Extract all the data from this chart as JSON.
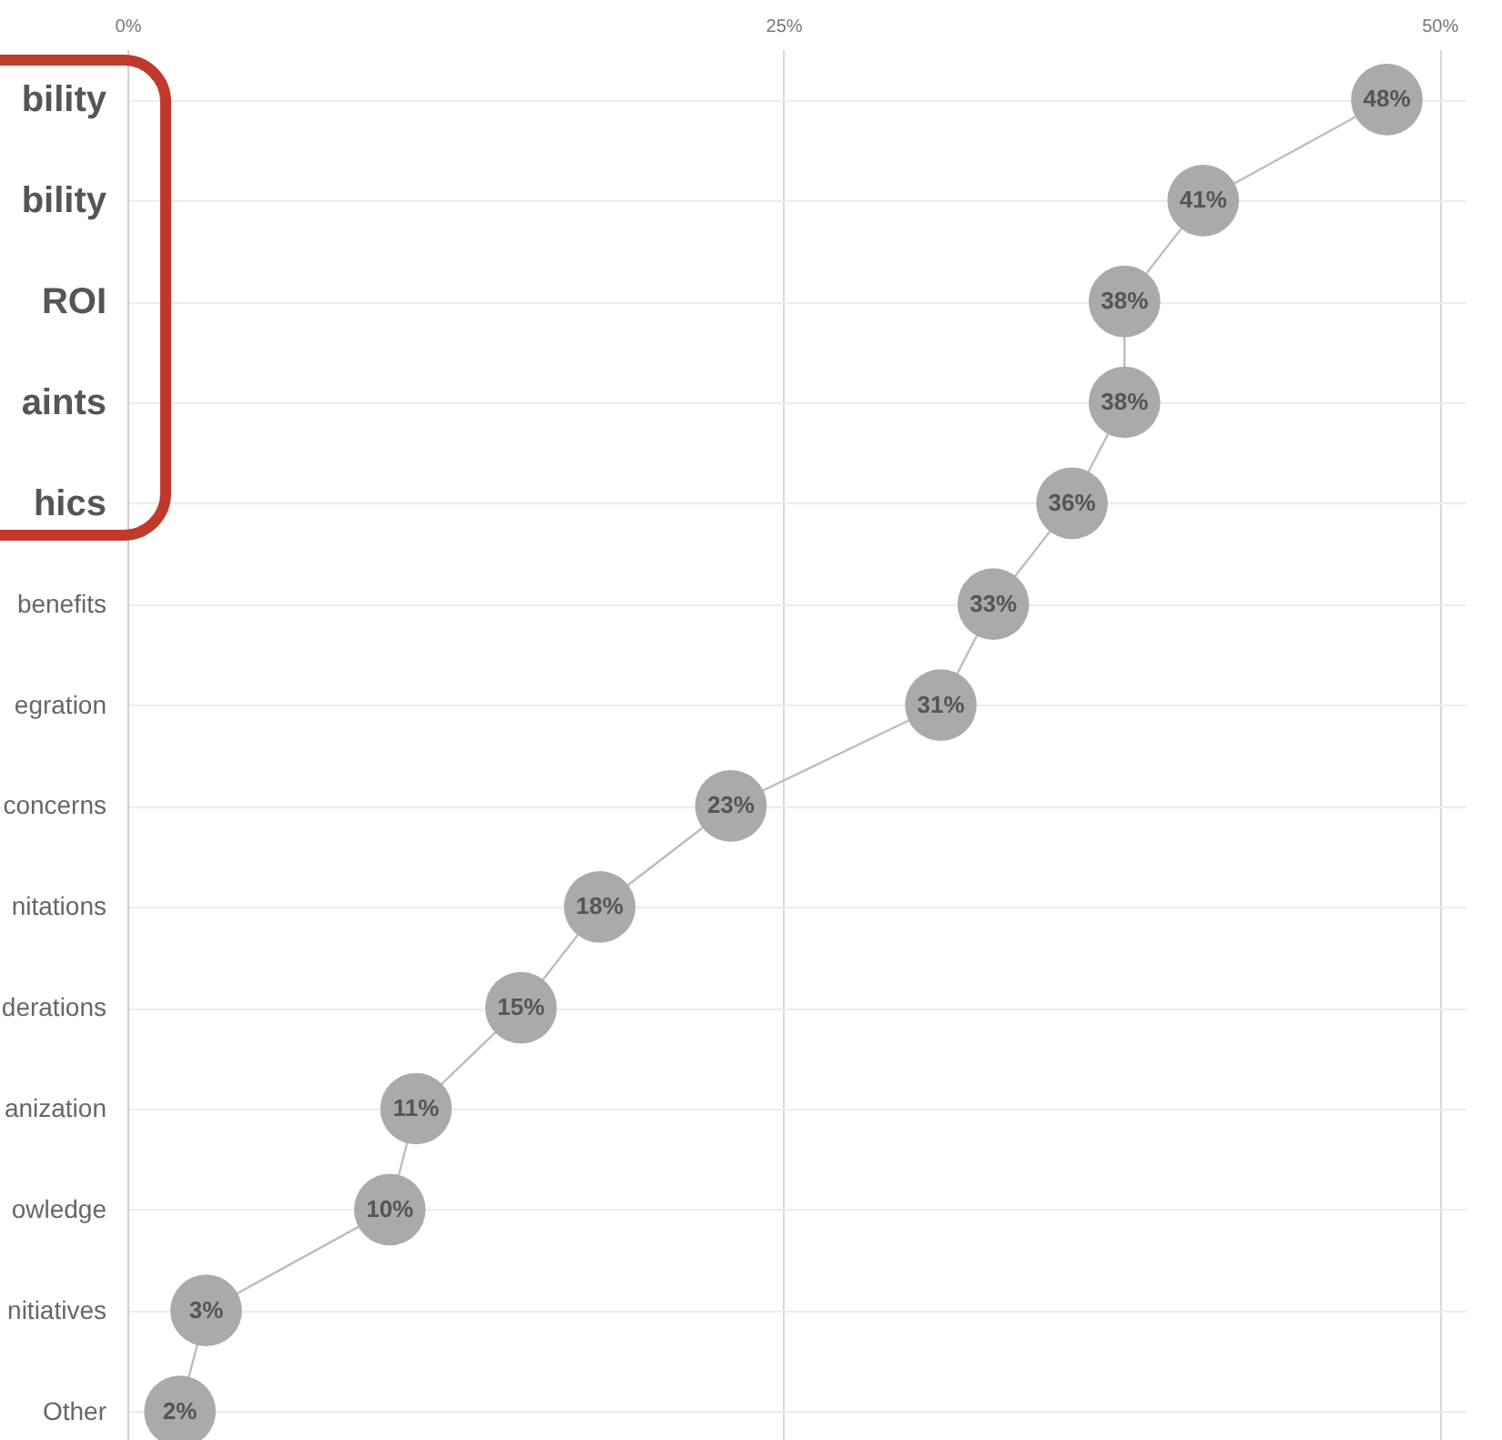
{
  "chart_data": {
    "type": "line",
    "orientation": "horizontal",
    "categories": [
      "bility",
      "bility",
      "ROI",
      "aints",
      "hics",
      "benefits",
      "egration",
      "concerns",
      "nitations",
      "derations",
      "anization",
      "owledge",
      "nitiatives",
      "Other"
    ],
    "values": [
      48,
      41,
      38,
      38,
      36,
      33,
      31,
      23,
      18,
      15,
      11,
      10,
      3,
      2
    ],
    "value_labels": [
      "48%",
      "41%",
      "38%",
      "38%",
      "36%",
      "33%",
      "31%",
      "23%",
      "18%",
      "15%",
      "11%",
      "10%",
      "3%",
      "2%"
    ],
    "color": "#aaaaaa",
    "marker": "circle",
    "grid": true,
    "xlim": [
      0,
      51
    ],
    "xticks": [
      {
        "value": 0,
        "label": "0%"
      },
      {
        "value": 25,
        "label": "25%"
      },
      {
        "value": 50,
        "label": "50%"
      }
    ]
  }
}
